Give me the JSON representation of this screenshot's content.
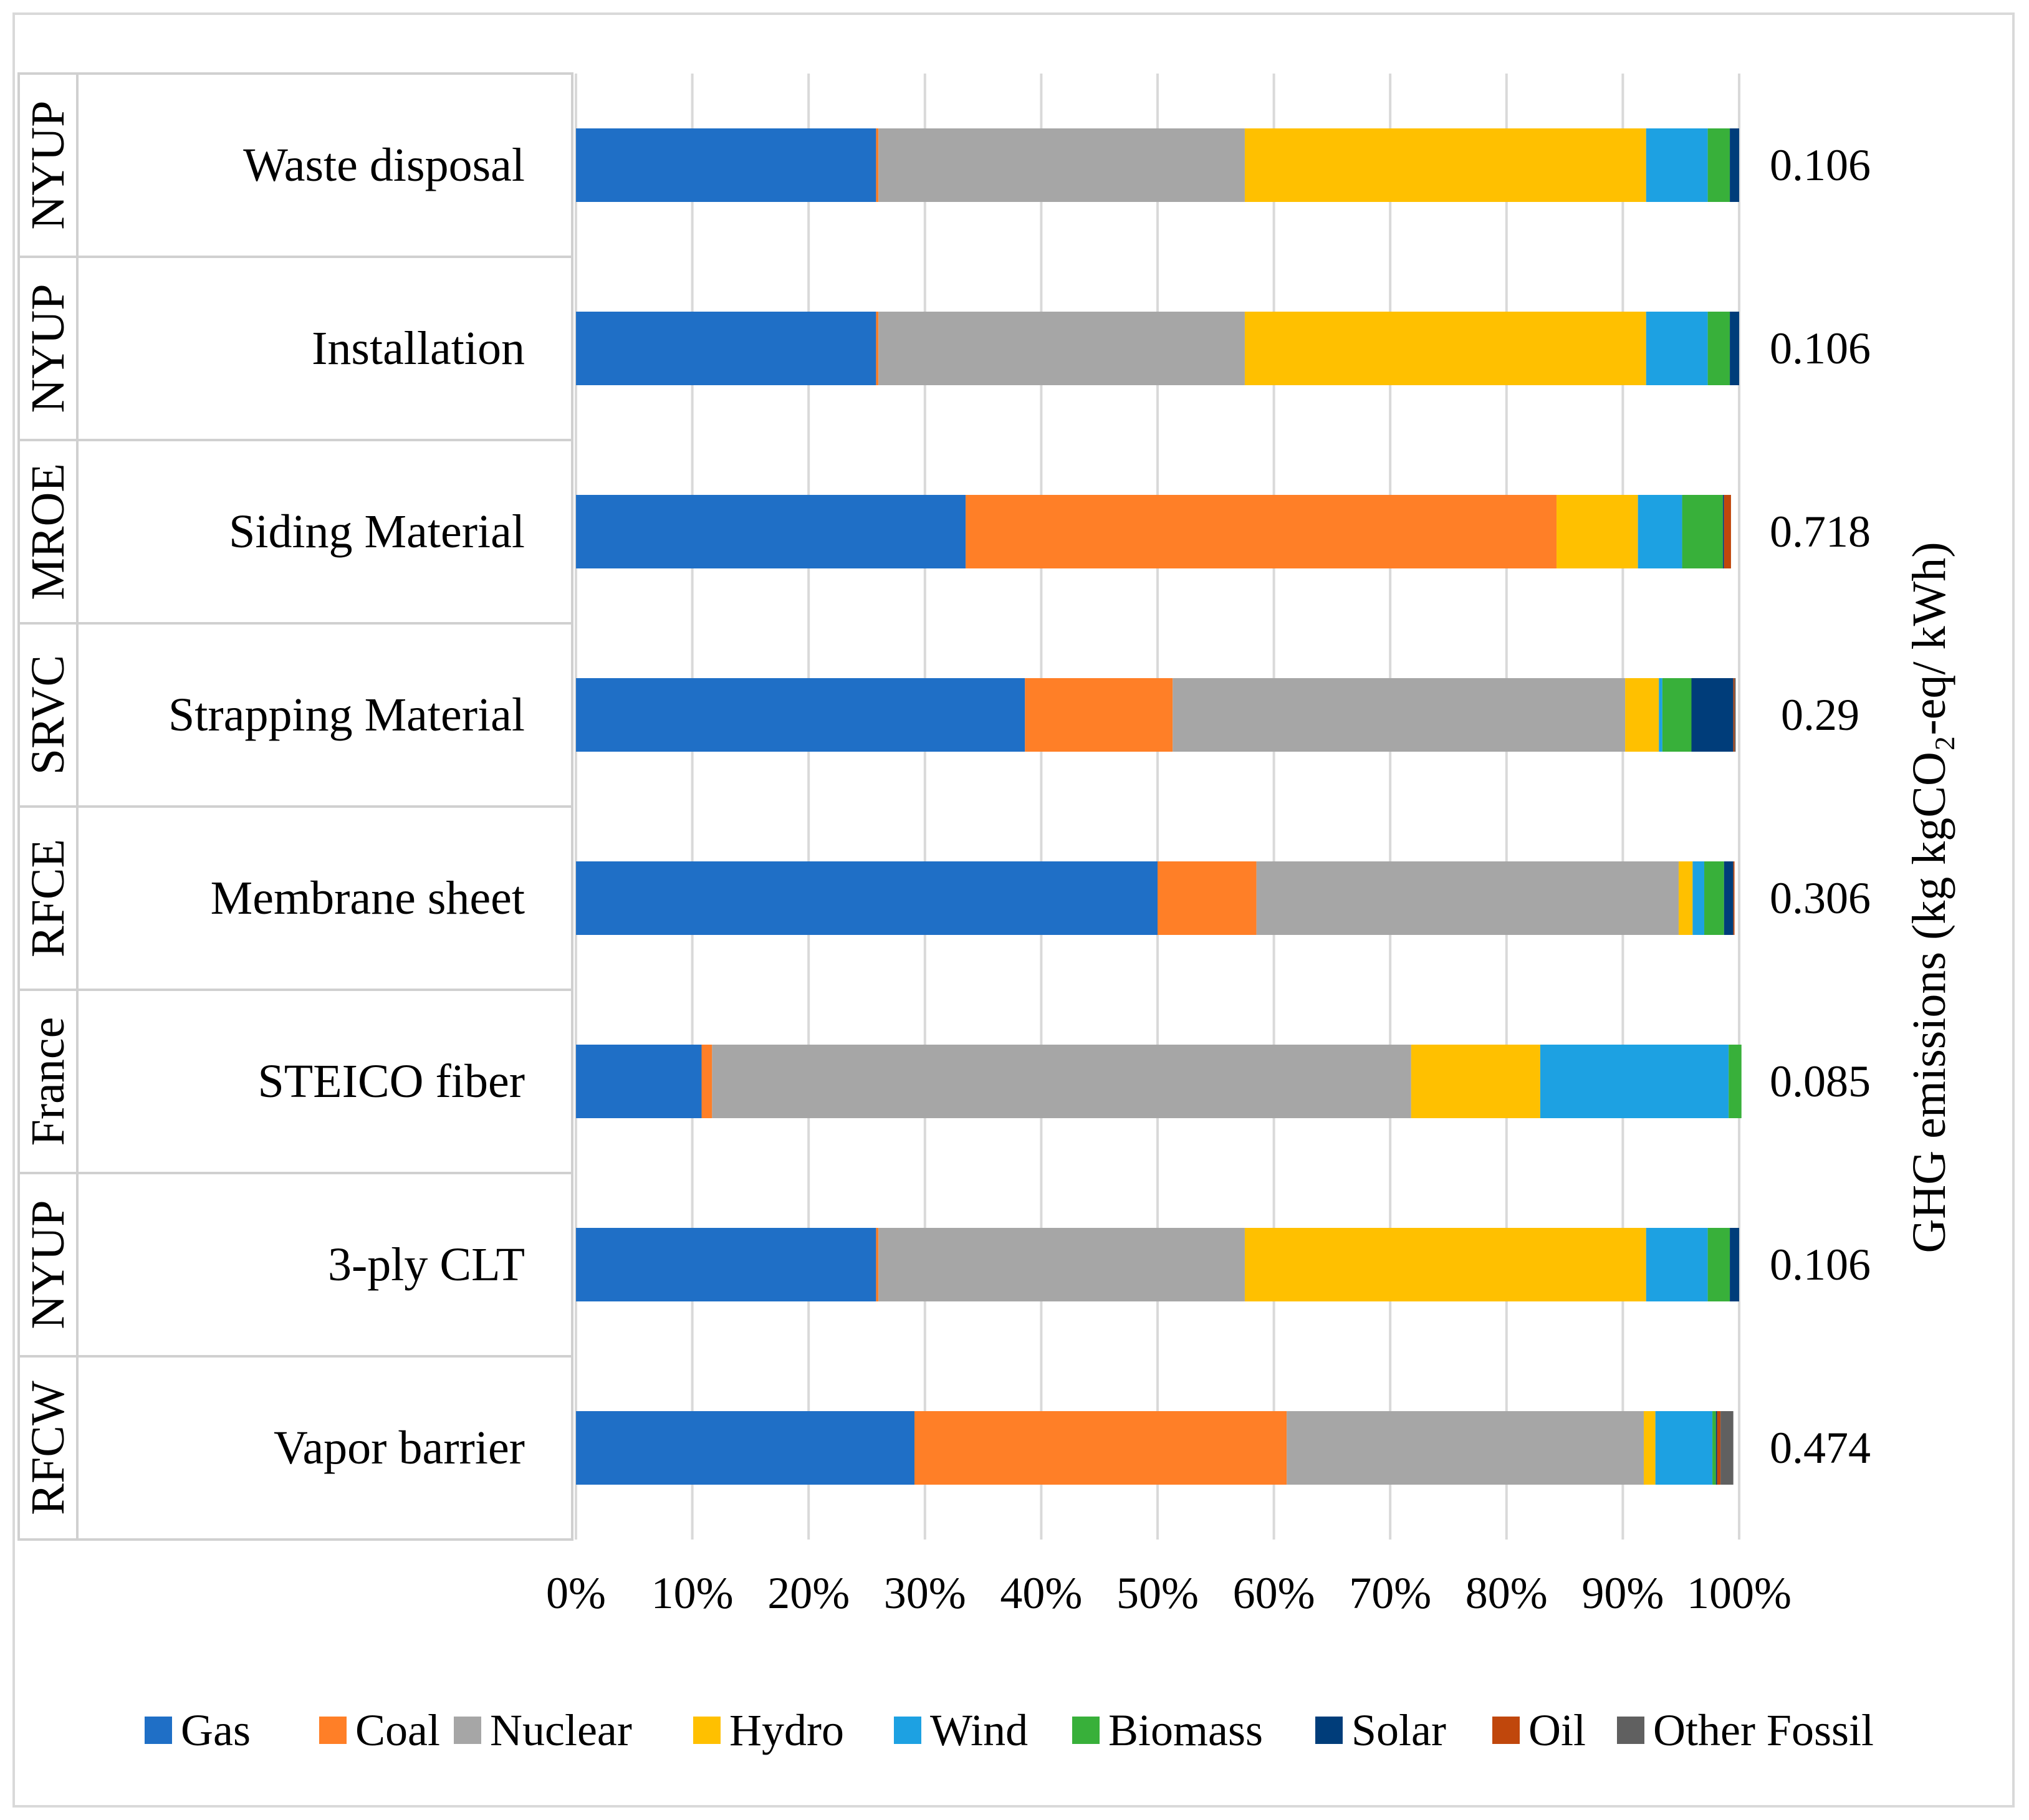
{
  "chart_data": {
    "type": "bar",
    "orientation": "horizontal",
    "stacked": "percent",
    "categories": [
      {
        "region": "NYUP",
        "name": "Waste disposal",
        "emission": "0.106"
      },
      {
        "region": "NYUP",
        "name": "Installation",
        "emission": "0.106"
      },
      {
        "region": "MROE",
        "name": "Siding Material",
        "emission": "0.718"
      },
      {
        "region": "SRVC",
        "name": "Strapping Material",
        "emission": "0.29"
      },
      {
        "region": "RFCE",
        "name": "Membrane sheet",
        "emission": "0.306"
      },
      {
        "region": "France",
        "name": "STEICO fiber",
        "emission": "0.085"
      },
      {
        "region": "NYUP",
        "name": "3-ply CLT",
        "emission": "0.106"
      },
      {
        "region": "RFCW",
        "name": "Vapor barrier",
        "emission": "0.474"
      }
    ],
    "series": [
      {
        "name": "Gas",
        "color": "#1F6FC6",
        "values": [
          25.8,
          25.8,
          33.5,
          38.6,
          50.0,
          10.8,
          25.8,
          29.1
        ]
      },
      {
        "name": "Coal",
        "color": "#FF7F27",
        "values": [
          0.2,
          0.2,
          50.8,
          12.7,
          8.5,
          0.9,
          0.2,
          32.0
        ]
      },
      {
        "name": "Nuclear",
        "color": "#A6A6A6",
        "values": [
          31.5,
          31.5,
          0.0,
          38.9,
          36.3,
          60.1,
          31.5,
          30.7
        ]
      },
      {
        "name": "Hydro",
        "color": "#FFC000",
        "values": [
          34.5,
          34.5,
          7.0,
          2.9,
          1.2,
          11.1,
          34.5,
          1.0
        ]
      },
      {
        "name": "Wind",
        "color": "#1DA1E2",
        "values": [
          5.3,
          5.3,
          3.8,
          0.3,
          1.0,
          16.2,
          5.3,
          4.9
        ]
      },
      {
        "name": "Biomass",
        "color": "#38B03A",
        "values": [
          1.9,
          1.9,
          3.5,
          2.5,
          1.7,
          1.1,
          1.9,
          0.3
        ]
      },
      {
        "name": "Solar",
        "color": "#003D7A",
        "values": [
          0.8,
          0.8,
          0.1,
          3.6,
          0.8,
          0.0,
          0.8,
          0.1
        ]
      },
      {
        "name": "Oil",
        "color": "#C0470C",
        "values": [
          0.0,
          0.0,
          0.6,
          0.1,
          0.1,
          0.0,
          0.0,
          0.3
        ]
      },
      {
        "name": "Other Fossil",
        "color": "#606060",
        "values": [
          0.0,
          0.0,
          0.0,
          0.1,
          0.0,
          0.0,
          0.0,
          1.1
        ]
      }
    ],
    "x_ticks": [
      "0%",
      "10%",
      "20%",
      "30%",
      "40%",
      "50%",
      "60%",
      "70%",
      "80%",
      "90%",
      "100%"
    ],
    "xlim": [
      0,
      100
    ],
    "right_axis_label": "GHG emissions (kg kgCO₂-eq/ kWh)",
    "grid": true,
    "legend_position": "bottom"
  }
}
